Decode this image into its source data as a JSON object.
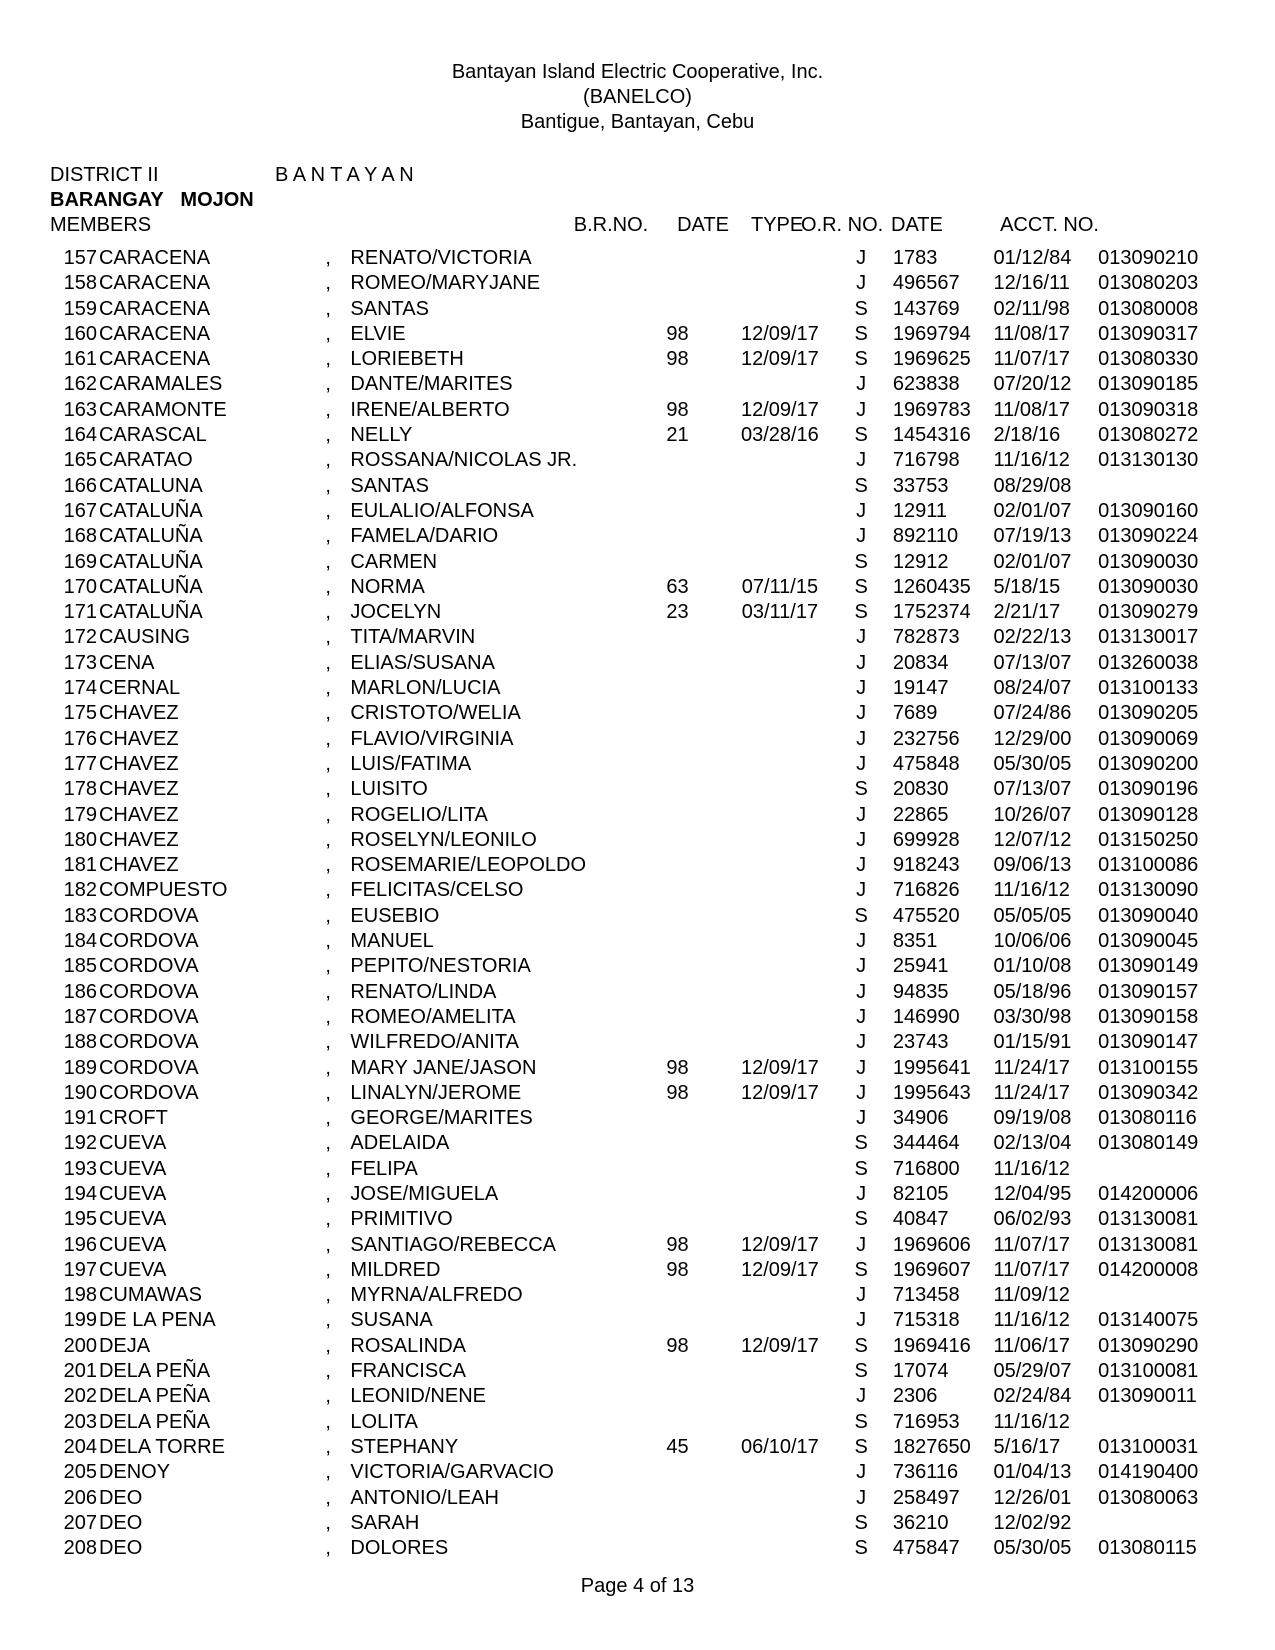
{
  "header": {
    "line1": "Bantayan Island Electric Cooperative, Inc.",
    "line2": "(BANELCO)",
    "line3": "Bantigue, Bantayan, Cebu"
  },
  "meta": {
    "district_label": "DISTRICT II",
    "district_value": "B A N T A Y A N",
    "barangay_label": "BARANGAY",
    "barangay_value": "MOJON",
    "members_label": "MEMBERS"
  },
  "columns": {
    "brno": "B.R.NO.",
    "date": "DATE",
    "type": "TYPE",
    "orno": "O.R. NO.",
    "ordate": "DATE",
    "acct": "ACCT. NO."
  },
  "rows": [
    {
      "n": "157",
      "last": "CARACENA",
      "first": "RENATO/VICTORIA",
      "b": "",
      "d": "",
      "t": "J",
      "o": "1783",
      "od": "01/12/84",
      "a": "013090210"
    },
    {
      "n": "158",
      "last": "CARACENA",
      "first": "ROMEO/MARYJANE",
      "b": "",
      "d": "",
      "t": "J",
      "o": "496567",
      "od": "12/16/11",
      "a": "013080203"
    },
    {
      "n": "159",
      "last": "CARACENA",
      "first": "SANTAS",
      "b": "",
      "d": "",
      "t": "S",
      "o": "143769",
      "od": "02/11/98",
      "a": "013080008"
    },
    {
      "n": "160",
      "last": "CARACENA",
      "first": "ELVIE",
      "b": "98",
      "d": "12/09/17",
      "t": "S",
      "o": "1969794",
      "od": "11/08/17",
      "a": "013090317"
    },
    {
      "n": "161",
      "last": "CARACENA",
      "first": "LORIEBETH",
      "b": "98",
      "d": "12/09/17",
      "t": "S",
      "o": "1969625",
      "od": "11/07/17",
      "a": "013080330"
    },
    {
      "n": "162",
      "last": "CARAMALES",
      "first": "DANTE/MARITES",
      "b": "",
      "d": "",
      "t": "J",
      "o": "623838",
      "od": "07/20/12",
      "a": "013090185"
    },
    {
      "n": "163",
      "last": "CARAMONTE",
      "first": "IRENE/ALBERTO",
      "b": "98",
      "d": "12/09/17",
      "t": "J",
      "o": "1969783",
      "od": "11/08/17",
      "a": "013090318"
    },
    {
      "n": "164",
      "last": "CARASCAL",
      "first": "NELLY",
      "b": "21",
      "d": "03/28/16",
      "t": "S",
      "o": "1454316",
      "od": "2/18/16",
      "a": "013080272"
    },
    {
      "n": "165",
      "last": "CARATAO",
      "first": "ROSSANA/NICOLAS JR.",
      "b": "",
      "d": "",
      "t": "J",
      "o": "716798",
      "od": "11/16/12",
      "a": "013130130"
    },
    {
      "n": "166",
      "last": "CATALUNA",
      "first": "SANTAS",
      "b": "",
      "d": "",
      "t": "S",
      "o": "33753",
      "od": "08/29/08",
      "a": ""
    },
    {
      "n": "167",
      "last": "CATALUÑA",
      "first": "EULALIO/ALFONSA",
      "b": "",
      "d": "",
      "t": "J",
      "o": "12911",
      "od": "02/01/07",
      "a": "013090160"
    },
    {
      "n": "168",
      "last": "CATALUÑA",
      "first": "FAMELA/DARIO",
      "b": "",
      "d": "",
      "t": "J",
      "o": "892110",
      "od": "07/19/13",
      "a": "013090224"
    },
    {
      "n": "169",
      "last": "CATALUÑA",
      "first": "CARMEN",
      "b": "",
      "d": "",
      "t": "S",
      "o": "12912",
      "od": "02/01/07",
      "a": "013090030"
    },
    {
      "n": "170",
      "last": "CATALUÑA",
      "first": "NORMA",
      "b": "63",
      "d": "07/11/15",
      "t": "S",
      "o": "1260435",
      "od": "5/18/15",
      "a": "013090030"
    },
    {
      "n": "171",
      "last": "CATALUÑA",
      "first": "JOCELYN",
      "b": "23",
      "d": "03/11/17",
      "t": "S",
      "o": "1752374",
      "od": "2/21/17",
      "a": "013090279"
    },
    {
      "n": "172",
      "last": "CAUSING",
      "first": "TITA/MARVIN",
      "b": "",
      "d": "",
      "t": "J",
      "o": "782873",
      "od": "02/22/13",
      "a": "013130017"
    },
    {
      "n": "173",
      "last": "CENA",
      "first": "ELIAS/SUSANA",
      "b": "",
      "d": "",
      "t": "J",
      "o": "20834",
      "od": "07/13/07",
      "a": "013260038"
    },
    {
      "n": "174",
      "last": "CERNAL",
      "first": "MARLON/LUCIA",
      "b": "",
      "d": "",
      "t": "J",
      "o": "19147",
      "od": "08/24/07",
      "a": "013100133"
    },
    {
      "n": "175",
      "last": "CHAVEZ",
      "first": "CRISTOTO/WELIA",
      "b": "",
      "d": "",
      "t": "J",
      "o": "7689",
      "od": "07/24/86",
      "a": "013090205"
    },
    {
      "n": "176",
      "last": "CHAVEZ",
      "first": "FLAVIO/VIRGINIA",
      "b": "",
      "d": "",
      "t": "J",
      "o": "232756",
      "od": "12/29/00",
      "a": "013090069"
    },
    {
      "n": "177",
      "last": "CHAVEZ",
      "first": "LUIS/FATIMA",
      "b": "",
      "d": "",
      "t": "J",
      "o": "475848",
      "od": "05/30/05",
      "a": "013090200"
    },
    {
      "n": "178",
      "last": "CHAVEZ",
      "first": "LUISITO",
      "b": "",
      "d": "",
      "t": "S",
      "o": "20830",
      "od": "07/13/07",
      "a": "013090196"
    },
    {
      "n": "179",
      "last": "CHAVEZ",
      "first": "ROGELIO/LITA",
      "b": "",
      "d": "",
      "t": "J",
      "o": "22865",
      "od": "10/26/07",
      "a": "013090128"
    },
    {
      "n": "180",
      "last": "CHAVEZ",
      "first": "ROSELYN/LEONILO",
      "b": "",
      "d": "",
      "t": "J",
      "o": "699928",
      "od": "12/07/12",
      "a": "013150250"
    },
    {
      "n": "181",
      "last": "CHAVEZ",
      "first": "ROSEMARIE/LEOPOLDO",
      "b": "",
      "d": "",
      "t": "J",
      "o": "918243",
      "od": "09/06/13",
      "a": "013100086"
    },
    {
      "n": "182",
      "last": "COMPUESTO",
      "first": "FELICITAS/CELSO",
      "b": "",
      "d": "",
      "t": "J",
      "o": "716826",
      "od": "11/16/12",
      "a": "013130090"
    },
    {
      "n": "183",
      "last": "CORDOVA",
      "first": "EUSEBIO",
      "b": "",
      "d": "",
      "t": "S",
      "o": "475520",
      "od": "05/05/05",
      "a": "013090040"
    },
    {
      "n": "184",
      "last": "CORDOVA",
      "first": "MANUEL",
      "b": "",
      "d": "",
      "t": "J",
      "o": "8351",
      "od": "10/06/06",
      "a": "013090045"
    },
    {
      "n": "185",
      "last": "CORDOVA",
      "first": "PEPITO/NESTORIA",
      "b": "",
      "d": "",
      "t": "J",
      "o": "25941",
      "od": "01/10/08",
      "a": "013090149"
    },
    {
      "n": "186",
      "last": "CORDOVA",
      "first": "RENATO/LINDA",
      "b": "",
      "d": "",
      "t": "J",
      "o": "94835",
      "od": "05/18/96",
      "a": "013090157"
    },
    {
      "n": "187",
      "last": "CORDOVA",
      "first": "ROMEO/AMELITA",
      "b": "",
      "d": "",
      "t": "J",
      "o": "146990",
      "od": "03/30/98",
      "a": "013090158"
    },
    {
      "n": "188",
      "last": "CORDOVA",
      "first": "WILFREDO/ANITA",
      "b": "",
      "d": "",
      "t": "J",
      "o": "23743",
      "od": "01/15/91",
      "a": "013090147"
    },
    {
      "n": "189",
      "last": "CORDOVA",
      "first": "MARY JANE/JASON",
      "b": "98",
      "d": "12/09/17",
      "t": "J",
      "o": "1995641",
      "od": "11/24/17",
      "a": "013100155"
    },
    {
      "n": "190",
      "last": "CORDOVA",
      "first": "LINALYN/JEROME",
      "b": "98",
      "d": "12/09/17",
      "t": "J",
      "o": "1995643",
      "od": "11/24/17",
      "a": "013090342"
    },
    {
      "n": "191",
      "last": "CROFT",
      "first": "GEORGE/MARITES",
      "b": "",
      "d": "",
      "t": "J",
      "o": "34906",
      "od": "09/19/08",
      "a": "013080116"
    },
    {
      "n": "192",
      "last": "CUEVA",
      "first": "ADELAIDA",
      "b": "",
      "d": "",
      "t": "S",
      "o": "344464",
      "od": "02/13/04",
      "a": "013080149"
    },
    {
      "n": "193",
      "last": "CUEVA",
      "first": "FELIPA",
      "b": "",
      "d": "",
      "t": "S",
      "o": "716800",
      "od": "11/16/12",
      "a": ""
    },
    {
      "n": "194",
      "last": "CUEVA",
      "first": "JOSE/MIGUELA",
      "b": "",
      "d": "",
      "t": "J",
      "o": "82105",
      "od": "12/04/95",
      "a": "014200006"
    },
    {
      "n": "195",
      "last": "CUEVA",
      "first": "PRIMITIVO",
      "b": "",
      "d": "",
      "t": "S",
      "o": "40847",
      "od": "06/02/93",
      "a": "013130081"
    },
    {
      "n": "196",
      "last": "CUEVA",
      "first": "SANTIAGO/REBECCA",
      "b": "98",
      "d": "12/09/17",
      "t": "J",
      "o": "1969606",
      "od": "11/07/17",
      "a": "013130081"
    },
    {
      "n": "197",
      "last": "CUEVA",
      "first": "MILDRED",
      "b": "98",
      "d": "12/09/17",
      "t": "S",
      "o": "1969607",
      "od": "11/07/17",
      "a": "014200008"
    },
    {
      "n": "198",
      "last": "CUMAWAS",
      "first": "MYRNA/ALFREDO",
      "b": "",
      "d": "",
      "t": "J",
      "o": "713458",
      "od": "11/09/12",
      "a": ""
    },
    {
      "n": "199",
      "last": "DE LA PENA",
      "first": "SUSANA",
      "b": "",
      "d": "",
      "t": "J",
      "o": "715318",
      "od": "11/16/12",
      "a": "013140075"
    },
    {
      "n": "200",
      "last": "DEJA",
      "first": "ROSALINDA",
      "b": "98",
      "d": "12/09/17",
      "t": "S",
      "o": "1969416",
      "od": "11/06/17",
      "a": "013090290"
    },
    {
      "n": "201",
      "last": "DELA PEÑA",
      "first": "FRANCISCA",
      "b": "",
      "d": "",
      "t": "S",
      "o": "17074",
      "od": "05/29/07",
      "a": "013100081"
    },
    {
      "n": "202",
      "last": "DELA PEÑA",
      "first": "LEONID/NENE",
      "b": "",
      "d": "",
      "t": "J",
      "o": "2306",
      "od": "02/24/84",
      "a": "013090011"
    },
    {
      "n": "203",
      "last": "DELA PEÑA",
      "first": "LOLITA",
      "b": "",
      "d": "",
      "t": "S",
      "o": "716953",
      "od": "11/16/12",
      "a": ""
    },
    {
      "n": "204",
      "last": "DELA TORRE",
      "first": "STEPHANY",
      "b": "45",
      "d": "06/10/17",
      "t": "S",
      "o": "1827650",
      "od": "5/16/17",
      "a": "013100031"
    },
    {
      "n": "205",
      "last": "DENOY",
      "first": "VICTORIA/GARVACIO",
      "b": "",
      "d": "",
      "t": "J",
      "o": "736116",
      "od": "01/04/13",
      "a": "014190400"
    },
    {
      "n": "206",
      "last": "DEO",
      "first": "ANTONIO/LEAH",
      "b": "",
      "d": "",
      "t": "J",
      "o": "258497",
      "od": "12/26/01",
      "a": "013080063"
    },
    {
      "n": "207",
      "last": "DEO",
      "first": "SARAH",
      "b": "",
      "d": "",
      "t": "S",
      "o": "36210",
      "od": "12/02/92",
      "a": ""
    },
    {
      "n": "208",
      "last": "DEO",
      "first": "DOLORES",
      "b": "",
      "d": "",
      "t": "S",
      "o": "475847",
      "od": "05/30/05",
      "a": "013080115"
    }
  ],
  "footer": "Page 4 of 13"
}
